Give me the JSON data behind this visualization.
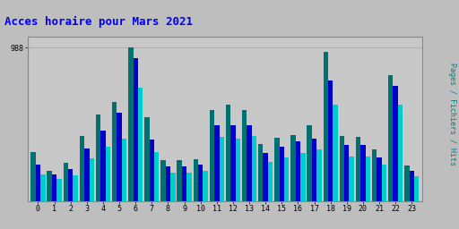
{
  "title": "Acces horaire pour Mars 2021",
  "ylabel": "Pages / Fichiers / Hits",
  "hours": [
    0,
    1,
    2,
    3,
    4,
    5,
    6,
    7,
    8,
    9,
    10,
    11,
    12,
    13,
    14,
    15,
    16,
    17,
    18,
    19,
    20,
    21,
    22,
    23
  ],
  "green": [
    320,
    200,
    250,
    420,
    560,
    640,
    988,
    540,
    265,
    265,
    270,
    590,
    620,
    590,
    370,
    410,
    430,
    490,
    960,
    420,
    415,
    335,
    810,
    230
  ],
  "blue": [
    240,
    175,
    210,
    340,
    455,
    570,
    920,
    400,
    225,
    225,
    235,
    490,
    490,
    490,
    315,
    355,
    385,
    405,
    780,
    365,
    365,
    285,
    745,
    195
  ],
  "cyan": [
    175,
    148,
    170,
    275,
    355,
    405,
    730,
    320,
    185,
    185,
    195,
    415,
    405,
    420,
    255,
    285,
    310,
    335,
    625,
    290,
    290,
    235,
    620,
    160
  ],
  "color_green": "#007070",
  "color_blue": "#0000CC",
  "color_cyan": "#00CCCC",
  "background_color": "#BEBEBE",
  "plot_background": "#C8C8C8",
  "title_color": "#0000EE",
  "ylabel_color": "#008080",
  "ytick_label": "988",
  "bar_width": 0.3,
  "ylim_max": 1060,
  "figwidth": 5.12,
  "figheight": 2.56,
  "dpi": 100
}
